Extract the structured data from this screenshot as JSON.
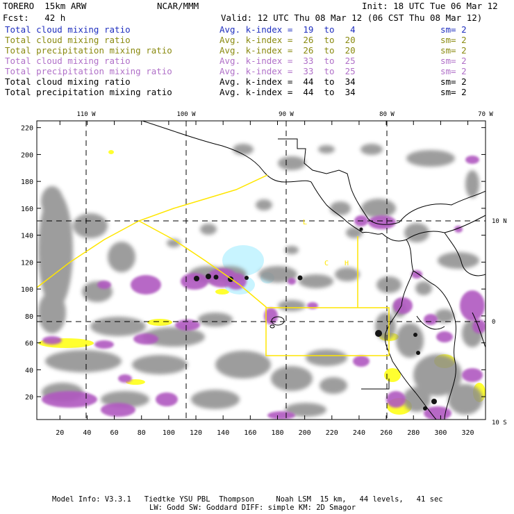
{
  "header": {
    "model": "TORERO  15km ARW",
    "org": "NCAR/MMM",
    "init": "Init: 18 UTC Tue 06 Mar 12",
    "fcst": "Fcst:   42 h",
    "valid": "Valid: 12 UTC Thu 08 Mar 12 (06 CST Thu 08 Mar 12)"
  },
  "legend": [
    {
      "field": "Total cloud mixing ratio",
      "range": "Avg. k-index =  19  to   4",
      "sm": "sm= 2",
      "color": "#1f2fbf"
    },
    {
      "field": "Total cloud mixing ratio",
      "range": "Avg. k-index =  26  to  20",
      "sm": "sm= 2",
      "color": "#8a8a10"
    },
    {
      "field": "Total precipitation mixing ratio",
      "range": "Avg. k-index =  26  to  20",
      "sm": "sm= 2",
      "color": "#8a8a10"
    },
    {
      "field": "Total cloud mixing ratio",
      "range": "Avg. k-index =  33  to  25",
      "sm": "sm= 2",
      "color": "#b070c8"
    },
    {
      "field": "Total precipitation mixing ratio",
      "range": "Avg. k-index =  33  to  25",
      "sm": "sm= 2",
      "color": "#b070c8"
    },
    {
      "field": "Total cloud mixing ratio",
      "range": "Avg. k-index =  44  to  34",
      "sm": "sm= 2",
      "color": "#000000"
    },
    {
      "field": "Total precipitation mixing ratio",
      "range": "Avg. k-index =  44  to  34",
      "sm": "sm= 2",
      "color": "#000000"
    }
  ],
  "map": {
    "lon_labels": [
      "110 W",
      "100 W",
      "90 W",
      "80 W",
      "70 W"
    ],
    "lat_labels": [
      "10 N",
      "0",
      "10 S"
    ],
    "x_ticks": [
      "20",
      "40",
      "60",
      "80",
      "100",
      "120",
      "140",
      "160",
      "180",
      "200",
      "220",
      "240",
      "260",
      "280",
      "300",
      "320"
    ],
    "y_ticks": [
      "20",
      "40",
      "60",
      "80",
      "100",
      "120",
      "140",
      "160",
      "180",
      "200",
      "220"
    ],
    "region_letters": [
      "L",
      "C",
      "H"
    ],
    "colors": {
      "cloud": "#808080",
      "cloud_light": "#b8b8b8",
      "precip": "#b058c0",
      "yellow": "#ffff30",
      "cyan": "#c8f4ff",
      "core": "#151515"
    }
  },
  "footer": {
    "line1": "Model Info: V3.3.1   Tiedtke YSU PBL  Thompson     Noah LSM  15 km,   44 levels,   41 sec",
    "line2": "LW: Godd SW: Goddard DIFF: simple KM: 2D Smagor"
  }
}
